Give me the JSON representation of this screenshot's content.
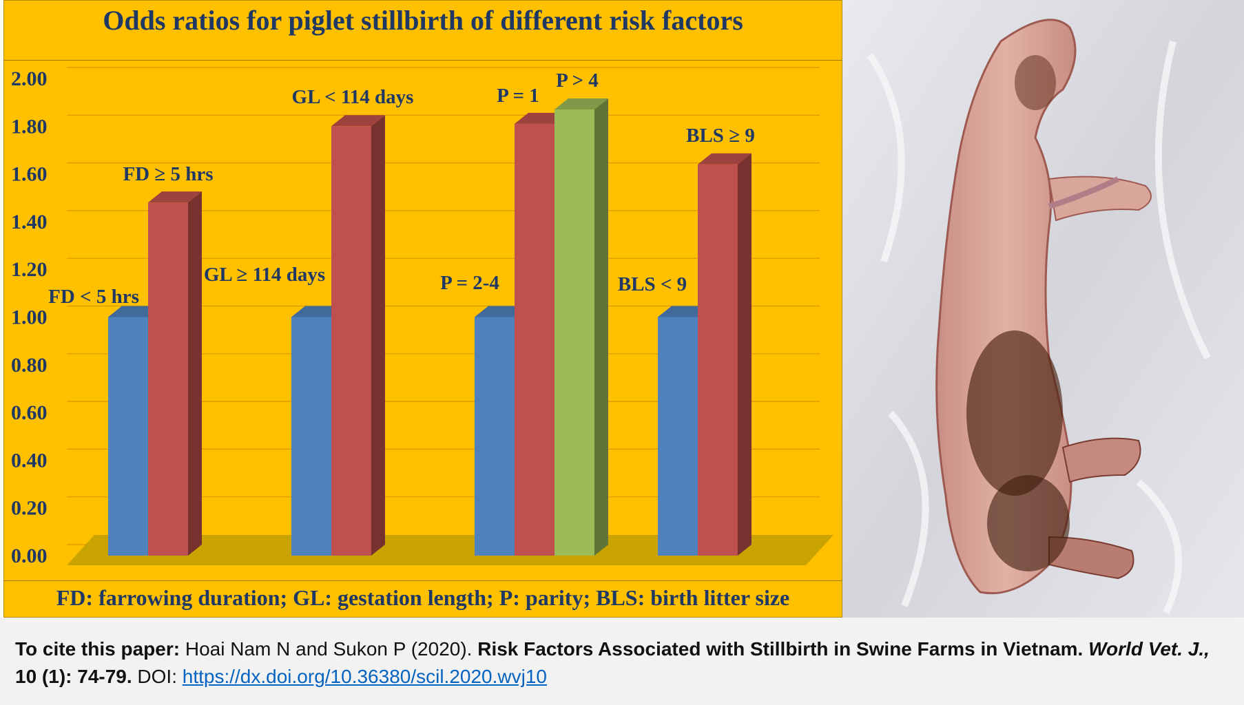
{
  "colors": {
    "panel_bg": "#FFC000",
    "title_text": "#1F3864",
    "floor": "#C9A300",
    "blue": "#4F81BD",
    "red": "#C0504D",
    "green": "#9BBB59"
  },
  "chart_data": {
    "type": "bar",
    "title": "Odds ratios for piglet stillbirth of different risk factors",
    "footnote": "FD: farrowing duration; GL: gestation length; P: parity; BLS: birth litter size",
    "ylim": [
      0,
      2.0
    ],
    "yticks": [
      "0.00",
      "0.20",
      "0.40",
      "0.60",
      "0.80",
      "1.00",
      "1.20",
      "1.40",
      "1.60",
      "1.80",
      "2.00"
    ],
    "grid": true,
    "style": "3d",
    "groups": [
      {
        "bars": [
          {
            "label": "FD < 5 hrs",
            "value": 1.0,
            "color": "blue"
          },
          {
            "label": "FD ≥ 5 hrs",
            "value": 1.48,
            "color": "red"
          }
        ]
      },
      {
        "bars": [
          {
            "label": "GL ≥ 114 days",
            "value": 1.0,
            "color": "blue"
          },
          {
            "label": "GL < 114 days",
            "value": 1.8,
            "color": "red"
          }
        ]
      },
      {
        "bars": [
          {
            "label": "P = 2-4",
            "value": 1.0,
            "color": "blue"
          },
          {
            "label": "P = 1",
            "value": 1.81,
            "color": "red"
          },
          {
            "label": "P > 4",
            "value": 1.87,
            "color": "green"
          }
        ]
      },
      {
        "bars": [
          {
            "label": "BLS < 9",
            "value": 1.0,
            "color": "blue"
          },
          {
            "label": "BLS  ≥ 9",
            "value": 1.64,
            "color": "red"
          }
        ]
      }
    ]
  },
  "photo": {
    "icon": "stillborn-piglet-photo"
  },
  "citation": {
    "lead": "To cite this paper:",
    "authors": " Hoai Nam N and Sukon P (2020). ",
    "title": "Risk Factors Associated with Stillbirth in Swine Farms in Vietnam.",
    "journal": " World Vet. J.,",
    "volume": " 10 (1): 74-79.",
    "doi_label": " DOI: ",
    "doi_url": "https://dx.doi.org/10.36380/scil.2020.wvj10"
  }
}
